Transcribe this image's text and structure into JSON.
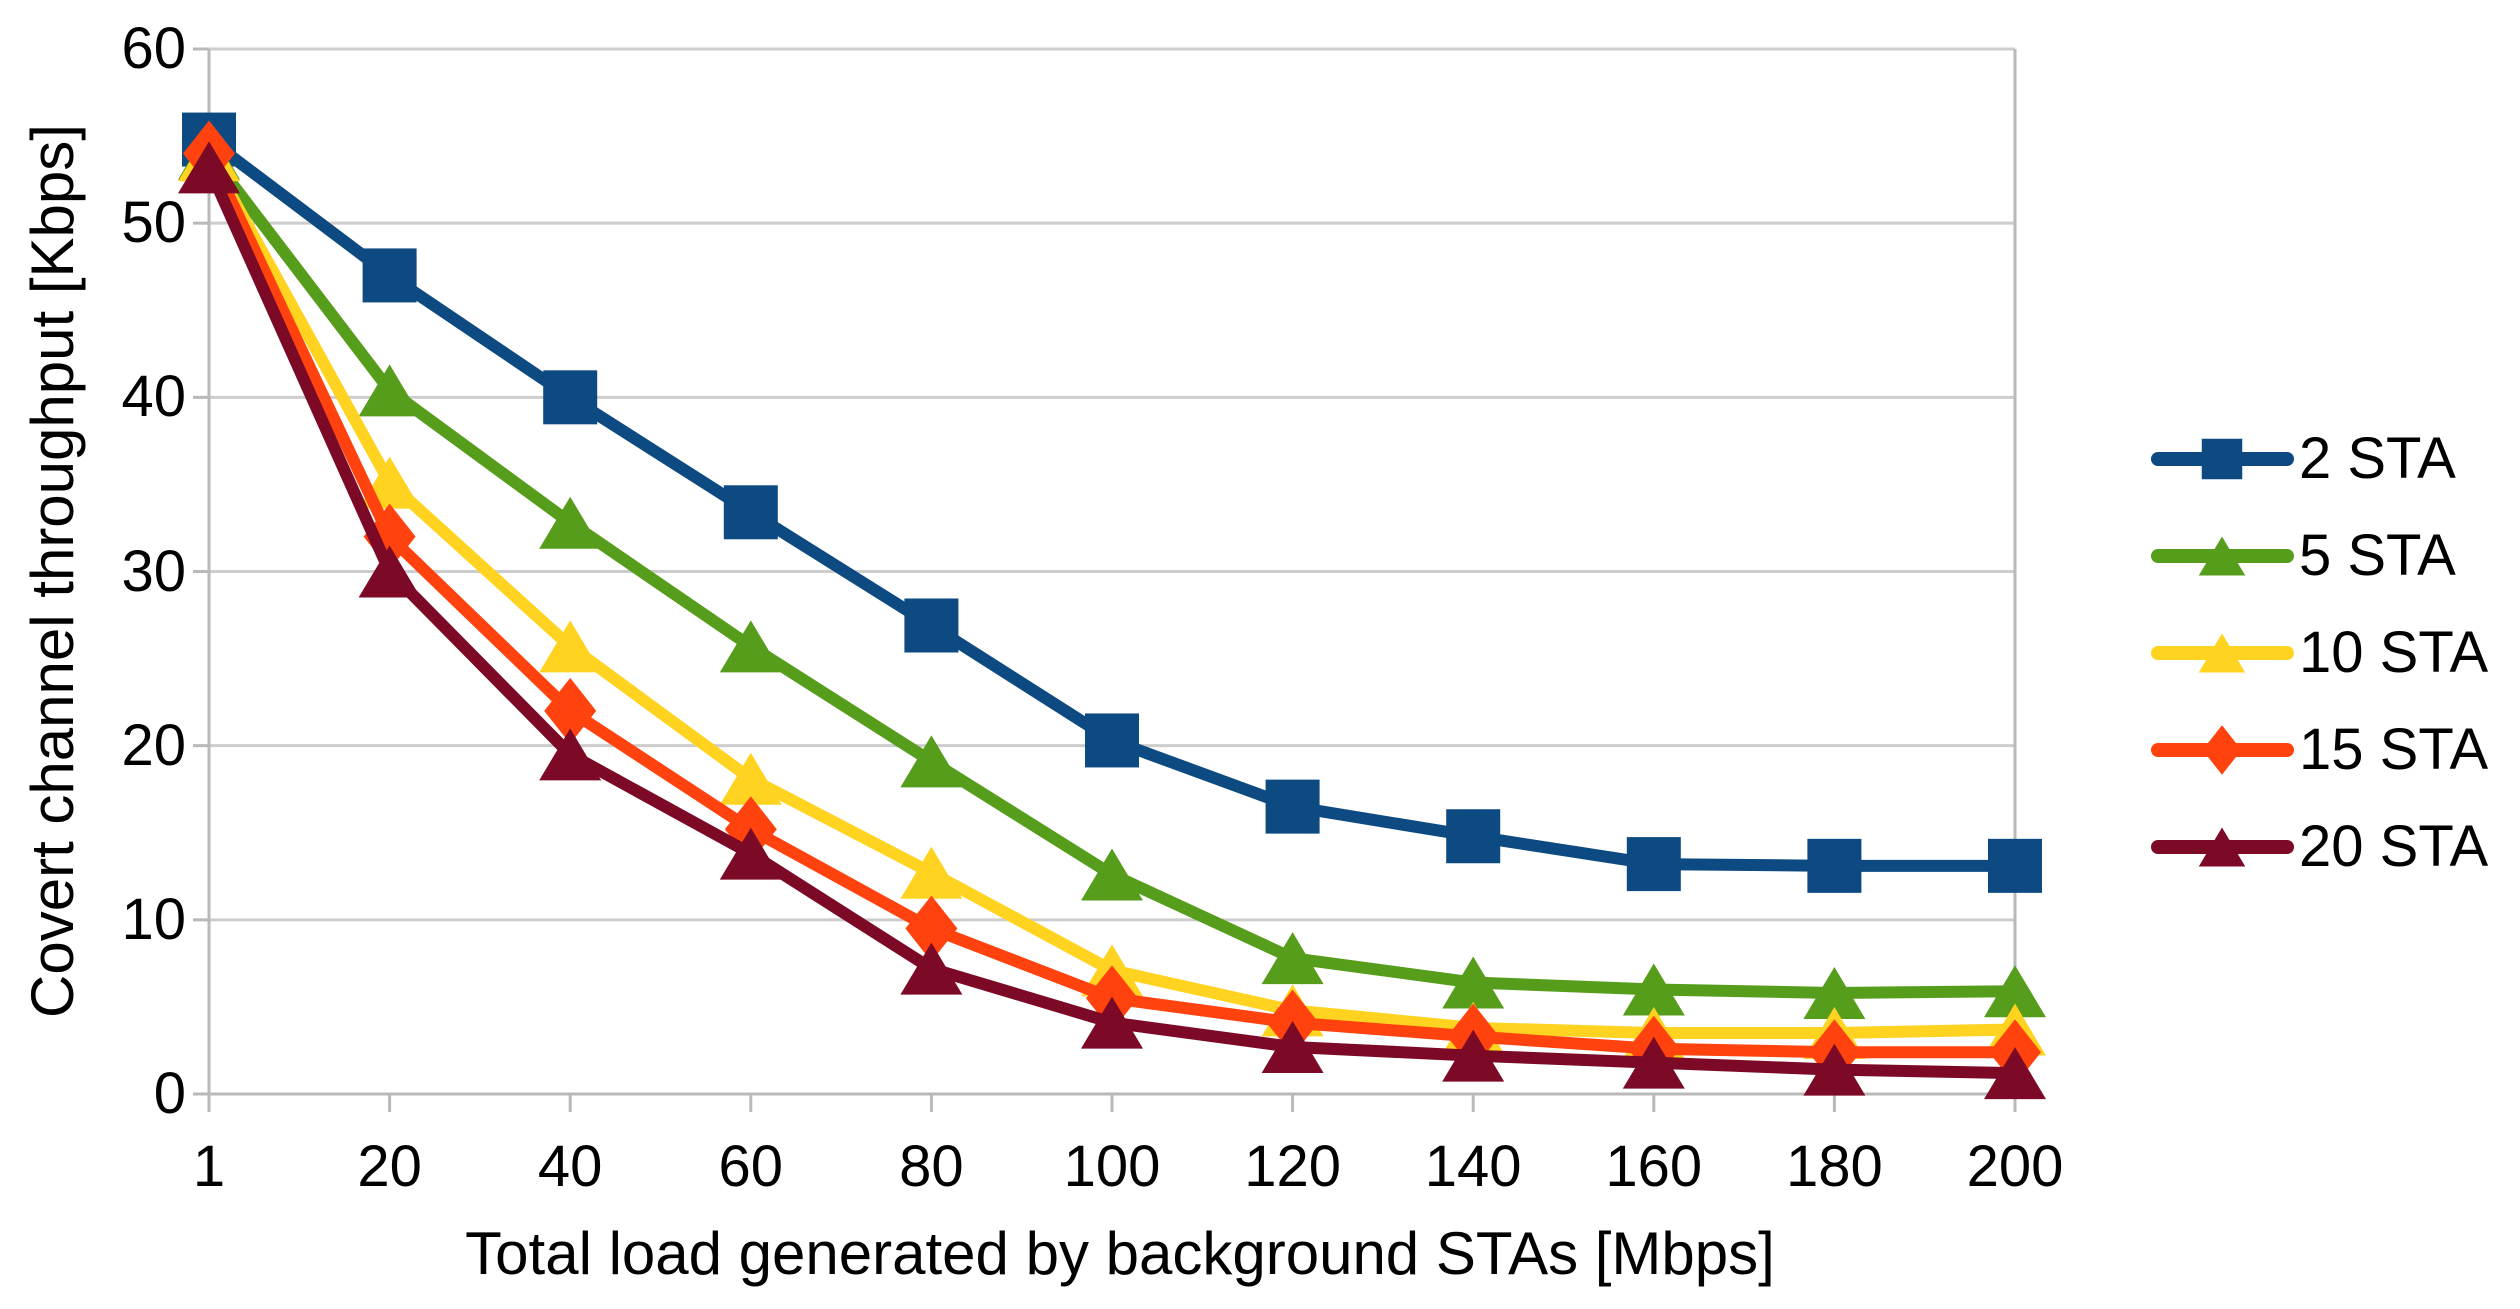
{
  "chart_data": {
    "type": "line",
    "title": "",
    "xlabel": "Total load generated by background STAs [Mbps]",
    "ylabel": "Covert channel throughput [Kbps]",
    "categories": [
      "1",
      "20",
      "40",
      "60",
      "80",
      "100",
      "120",
      "140",
      "160",
      "180",
      "200"
    ],
    "ylim": [
      0,
      60
    ],
    "yticks": [
      0,
      10,
      20,
      30,
      40,
      50,
      60
    ],
    "grid": "horizontal",
    "legend_position": "right",
    "series": [
      {
        "name": "2 STA",
        "color": "#0d4a82",
        "marker": "square",
        "values": [
          54.8,
          47.0,
          40.0,
          33.4,
          26.9,
          20.3,
          16.5,
          14.8,
          13.2,
          13.1,
          13.1
        ]
      },
      {
        "name": "5 STA",
        "color": "#579d1c",
        "marker": "triangle",
        "values": [
          54.0,
          40.4,
          32.8,
          25.7,
          19.1,
          12.6,
          7.8,
          6.4,
          6.0,
          5.8,
          5.9
        ]
      },
      {
        "name": "10 STA",
        "color": "#ffd320",
        "marker": "triangle",
        "values": [
          53.9,
          35.1,
          25.7,
          18.1,
          12.7,
          7.1,
          4.8,
          3.8,
          3.5,
          3.5,
          3.7
        ]
      },
      {
        "name": "15 STA",
        "color": "#ff420e",
        "marker": "diamond",
        "values": [
          54.0,
          32.0,
          22.0,
          15.2,
          9.5,
          5.5,
          4.1,
          3.3,
          2.6,
          2.4,
          2.4
        ]
      },
      {
        "name": "20 STA",
        "color": "#7c0a26",
        "marker": "triangle",
        "values": [
          53.2,
          30.0,
          19.5,
          13.8,
          7.2,
          4.1,
          2.7,
          2.2,
          1.8,
          1.4,
          1.2
        ]
      }
    ],
    "colors": {
      "axis_line": "#b9b9b9",
      "gridline": "#cdcdcd",
      "text": "#000000",
      "background": "#ffffff"
    }
  }
}
